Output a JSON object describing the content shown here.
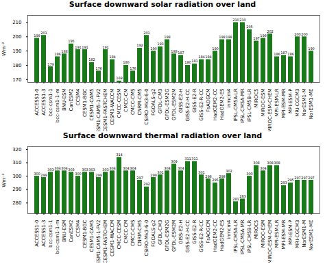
{
  "chart_data": [
    {
      "type": "bar",
      "title": "Surface downward solar radiation over land",
      "ylabel": "Wm⁻²",
      "categories": [
        "ACCESS1-0",
        "ACCESS1-3",
        "bcc-csm1-1",
        "bcc-csm1-1-m",
        "BNU-ESM",
        "CanESM2",
        "CCSM4",
        "CESM1-BGC",
        "CESM1-CAM5",
        "CESM1-CAM5-1-FV2",
        "CESM1-FASTCHEM",
        "CESM1-WACCM",
        "CMCC-CESM",
        "CMCC-CM",
        "CMCC-CMS",
        "CNRM-CM5",
        "CSIRO-Mk3-6-0",
        "FGOALS-g2",
        "GFDL-CM3",
        "GFDL-ESM2G",
        "GFDL-ESM2M",
        "GISS-E2-H",
        "GISS-E2-H-CC",
        "GISS-E2-R",
        "GISS-E2-R-CC",
        "FsAOGCM",
        "HadGEM2-CC",
        "HadGEM2-ES",
        "inmcm4",
        "IPSL-CM5A-LR",
        "IPSL-CM5A-MR",
        "IPSL-CM5B-LR",
        "MIROC5",
        "MIROC-ESM",
        "MIROC-ESM-CHEM",
        "MPI-ESM-LR",
        "MPI-ESM-MR",
        "MPI-ESM-P",
        "MRI-CGCM3",
        "NorESM1-M",
        "NorESM1-ME"
      ],
      "values": [
        199,
        201,
        179,
        186,
        188,
        195,
        191,
        191,
        182,
        176,
        191,
        184,
        169,
        180,
        176,
        192,
        201,
        190,
        193,
        198,
        188,
        187,
        180,
        181,
        184,
        184,
        190,
        198,
        198,
        210,
        210,
        205,
        197,
        199,
        202,
        186,
        187,
        186,
        200,
        200,
        190
      ],
      "color": "#1a7a1a",
      "ylim": [
        168,
        215
      ],
      "yticks": [
        170,
        180,
        190,
        200,
        210
      ],
      "grid": false,
      "data_labels": true
    },
    {
      "type": "bar",
      "title": "Surface downward thermal radiation over land",
      "ylabel": "Wm⁻²",
      "categories": [
        "ACCESS1-0",
        "ACCESS1-3",
        "bcc-csm1-1",
        "bcc-csm1-1-m",
        "BNU-ESM",
        "CanESM2",
        "CCSM4",
        "CESM1-BGC",
        "CESM1-CAM5",
        "CESM1-CAM5-1-FV2",
        "CESM1-FASTCHEM",
        "CESM1-WACCM",
        "CMCC-CESM",
        "CMCC-CM",
        "CMCC-CMS",
        "CNRM-CM5",
        "CSIRO-Mk3-6-0",
        "FGOALS-g2",
        "GFDL-CM3",
        "GFDL-ESM2G",
        "GFDL-ESM2M",
        "GISS-E2-H",
        "GISS-E2-H-CC",
        "GISS-E2-R",
        "GISS-E2-R-CC",
        "FsAOGCM",
        "HadGEM2-CC",
        "HadGEM2-ES",
        "inmcm4",
        "IPSL-CM5A-LR",
        "IPSL-CM5A-MR",
        "IPSL-CM5B-LR",
        "MIROC5",
        "MIROC-ESM",
        "MIROC-ESM-CHEM",
        "MPI-ESM-LR",
        "MPI-ESM-MR",
        "MPI-ESM-P",
        "MRI-CGCM3",
        "NorESM1-M",
        "NorESM1-ME"
      ],
      "values": [
        300,
        299,
        303,
        304,
        304,
        303,
        300,
        303,
        303,
        299,
        303,
        304,
        314,
        304,
        304,
        297,
        292,
        299,
        301,
        304,
        309,
        304,
        311,
        311,
        301,
        298,
        295,
        298,
        302,
        281,
        283,
        300,
        308,
        304,
        308,
        308,
        293,
        295,
        297,
        297,
        297
      ],
      "color": "#1a7a1a",
      "ylim": [
        272,
        322
      ],
      "yticks": [
        280,
        290,
        300,
        310,
        320
      ],
      "grid": false,
      "data_labels": true
    }
  ]
}
